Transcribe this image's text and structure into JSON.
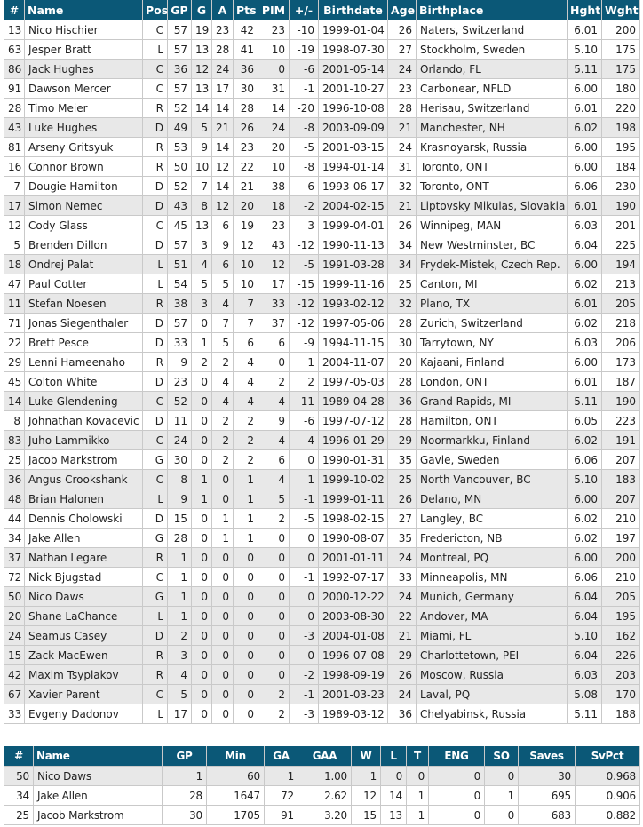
{
  "colors": {
    "header_bg": "#0b5877",
    "header_text": "#ffffff",
    "highlight_row": "#e8e8e8",
    "border": "#c9c9c9"
  },
  "skaters": {
    "columns": [
      "#",
      "Name",
      "Pos",
      "GP",
      "G",
      "A",
      "Pts",
      "PIM",
      "+/-",
      "Birthdate",
      "Age",
      "Birthplace",
      "Hght",
      "Wght"
    ],
    "rows": [
      {
        "cells": [
          "13",
          "Nico Hischier",
          "C",
          "57",
          "19",
          "23",
          "42",
          "23",
          "-10",
          "1999-01-04",
          "26",
          "Naters, Switzerland",
          "6.01",
          "200"
        ],
        "highlighted": false
      },
      {
        "cells": [
          "63",
          "Jesper Bratt",
          "L",
          "57",
          "13",
          "28",
          "41",
          "10",
          "-19",
          "1998-07-30",
          "27",
          "Stockholm, Sweden",
          "5.10",
          "175"
        ],
        "highlighted": false
      },
      {
        "cells": [
          "86",
          "Jack Hughes",
          "C",
          "36",
          "12",
          "24",
          "36",
          "0",
          "-6",
          "2001-05-14",
          "24",
          "Orlando, FL",
          "5.11",
          "175"
        ],
        "highlighted": true
      },
      {
        "cells": [
          "91",
          "Dawson Mercer",
          "C",
          "57",
          "13",
          "17",
          "30",
          "31",
          "-1",
          "2001-10-27",
          "23",
          "Carbonear, NFLD",
          "6.00",
          "180"
        ],
        "highlighted": false
      },
      {
        "cells": [
          "28",
          "Timo Meier",
          "R",
          "52",
          "14",
          "14",
          "28",
          "14",
          "-20",
          "1996-10-08",
          "28",
          "Herisau, Switzerland",
          "6.01",
          "220"
        ],
        "highlighted": false
      },
      {
        "cells": [
          "43",
          "Luke Hughes",
          "D",
          "49",
          "5",
          "21",
          "26",
          "24",
          "-8",
          "2003-09-09",
          "21",
          "Manchester, NH",
          "6.02",
          "198"
        ],
        "highlighted": true
      },
      {
        "cells": [
          "81",
          "Arseny Gritsyuk",
          "R",
          "53",
          "9",
          "14",
          "23",
          "20",
          "-5",
          "2001-03-15",
          "24",
          "Krasnoyarsk, Russia",
          "6.00",
          "195"
        ],
        "highlighted": false
      },
      {
        "cells": [
          "16",
          "Connor Brown",
          "R",
          "50",
          "10",
          "12",
          "22",
          "10",
          "-8",
          "1994-01-14",
          "31",
          "Toronto, ONT",
          "6.00",
          "184"
        ],
        "highlighted": false
      },
      {
        "cells": [
          "7",
          "Dougie Hamilton",
          "D",
          "52",
          "7",
          "14",
          "21",
          "38",
          "-6",
          "1993-06-17",
          "32",
          "Toronto, ONT",
          "6.06",
          "230"
        ],
        "highlighted": false
      },
      {
        "cells": [
          "17",
          "Simon Nemec",
          "D",
          "43",
          "8",
          "12",
          "20",
          "18",
          "-2",
          "2004-02-15",
          "21",
          "Liptovsky Mikulas, Slovakia",
          "6.01",
          "190"
        ],
        "highlighted": true
      },
      {
        "cells": [
          "12",
          "Cody Glass",
          "C",
          "45",
          "13",
          "6",
          "19",
          "23",
          "3",
          "1999-04-01",
          "26",
          "Winnipeg, MAN",
          "6.03",
          "201"
        ],
        "highlighted": false
      },
      {
        "cells": [
          "5",
          "Brenden Dillon",
          "D",
          "57",
          "3",
          "9",
          "12",
          "43",
          "-12",
          "1990-11-13",
          "34",
          "New Westminster, BC",
          "6.04",
          "225"
        ],
        "highlighted": false
      },
      {
        "cells": [
          "18",
          "Ondrej Palat",
          "L",
          "51",
          "4",
          "6",
          "10",
          "12",
          "-5",
          "1991-03-28",
          "34",
          "Frydek-Mistek, Czech Rep.",
          "6.00",
          "194"
        ],
        "highlighted": true
      },
      {
        "cells": [
          "47",
          "Paul Cotter",
          "L",
          "54",
          "5",
          "5",
          "10",
          "17",
          "-15",
          "1999-11-16",
          "25",
          "Canton, MI",
          "6.02",
          "213"
        ],
        "highlighted": false
      },
      {
        "cells": [
          "11",
          "Stefan Noesen",
          "R",
          "38",
          "3",
          "4",
          "7",
          "33",
          "-12",
          "1993-02-12",
          "32",
          "Plano, TX",
          "6.01",
          "205"
        ],
        "highlighted": true
      },
      {
        "cells": [
          "71",
          "Jonas Siegenthaler",
          "D",
          "57",
          "0",
          "7",
          "7",
          "37",
          "-12",
          "1997-05-06",
          "28",
          "Zurich, Switzerland",
          "6.02",
          "218"
        ],
        "highlighted": false
      },
      {
        "cells": [
          "22",
          "Brett Pesce",
          "D",
          "33",
          "1",
          "5",
          "6",
          "6",
          "-9",
          "1994-11-15",
          "30",
          "Tarrytown, NY",
          "6.03",
          "206"
        ],
        "highlighted": false
      },
      {
        "cells": [
          "29",
          "Lenni Hameenaho",
          "R",
          "9",
          "2",
          "2",
          "4",
          "0",
          "1",
          "2004-11-07",
          "20",
          "Kajaani, Finland",
          "6.00",
          "173"
        ],
        "highlighted": false
      },
      {
        "cells": [
          "45",
          "Colton White",
          "D",
          "23",
          "0",
          "4",
          "4",
          "2",
          "2",
          "1997-05-03",
          "28",
          "London, ONT",
          "6.01",
          "187"
        ],
        "highlighted": false
      },
      {
        "cells": [
          "14",
          "Luke Glendening",
          "C",
          "52",
          "0",
          "4",
          "4",
          "4",
          "-11",
          "1989-04-28",
          "36",
          "Grand Rapids, MI",
          "5.11",
          "190"
        ],
        "highlighted": true
      },
      {
        "cells": [
          "8",
          "Johnathan Kovacevic",
          "D",
          "11",
          "0",
          "2",
          "2",
          "9",
          "-6",
          "1997-07-12",
          "28",
          "Hamilton, ONT",
          "6.05",
          "223"
        ],
        "highlighted": false
      },
      {
        "cells": [
          "83",
          "Juho Lammikko",
          "C",
          "24",
          "0",
          "2",
          "2",
          "4",
          "-4",
          "1996-01-29",
          "29",
          "Noormarkku, Finland",
          "6.02",
          "191"
        ],
        "highlighted": true
      },
      {
        "cells": [
          "25",
          "Jacob Markstrom",
          "G",
          "30",
          "0",
          "2",
          "2",
          "6",
          "0",
          "1990-01-31",
          "35",
          "Gavle, Sweden",
          "6.06",
          "207"
        ],
        "highlighted": false
      },
      {
        "cells": [
          "36",
          "Angus Crookshank",
          "C",
          "8",
          "1",
          "0",
          "1",
          "4",
          "1",
          "1999-10-02",
          "25",
          "North Vancouver, BC",
          "5.10",
          "183"
        ],
        "highlighted": true
      },
      {
        "cells": [
          "48",
          "Brian Halonen",
          "L",
          "9",
          "1",
          "0",
          "1",
          "5",
          "-1",
          "1999-01-11",
          "26",
          "Delano, MN",
          "6.00",
          "207"
        ],
        "highlighted": true
      },
      {
        "cells": [
          "44",
          "Dennis Cholowski",
          "D",
          "15",
          "0",
          "1",
          "1",
          "2",
          "-5",
          "1998-02-15",
          "27",
          "Langley, BC",
          "6.02",
          "210"
        ],
        "highlighted": false
      },
      {
        "cells": [
          "34",
          "Jake Allen",
          "G",
          "28",
          "0",
          "1",
          "1",
          "0",
          "0",
          "1990-08-07",
          "35",
          "Fredericton, NB",
          "6.02",
          "197"
        ],
        "highlighted": false
      },
      {
        "cells": [
          "37",
          "Nathan Legare",
          "R",
          "1",
          "0",
          "0",
          "0",
          "0",
          "0",
          "2001-01-11",
          "24",
          "Montreal, PQ",
          "6.00",
          "200"
        ],
        "highlighted": true
      },
      {
        "cells": [
          "72",
          "Nick Bjugstad",
          "C",
          "1",
          "0",
          "0",
          "0",
          "0",
          "-1",
          "1992-07-17",
          "33",
          "Minneapolis, MN",
          "6.06",
          "210"
        ],
        "highlighted": false
      },
      {
        "cells": [
          "50",
          "Nico Daws",
          "G",
          "1",
          "0",
          "0",
          "0",
          "0",
          "0",
          "2000-12-22",
          "24",
          "Munich, Germany",
          "6.04",
          "205"
        ],
        "highlighted": true
      },
      {
        "cells": [
          "20",
          "Shane LaChance",
          "L",
          "1",
          "0",
          "0",
          "0",
          "0",
          "0",
          "2003-08-30",
          "22",
          "Andover, MA",
          "6.04",
          "195"
        ],
        "highlighted": true
      },
      {
        "cells": [
          "24",
          "Seamus Casey",
          "D",
          "2",
          "0",
          "0",
          "0",
          "0",
          "-3",
          "2004-01-08",
          "21",
          "Miami, FL",
          "5.10",
          "162"
        ],
        "highlighted": true
      },
      {
        "cells": [
          "15",
          "Zack MacEwen",
          "R",
          "3",
          "0",
          "0",
          "0",
          "0",
          "0",
          "1996-07-08",
          "29",
          "Charlottetown, PEI",
          "6.04",
          "226"
        ],
        "highlighted": true
      },
      {
        "cells": [
          "42",
          "Maxim Tsyplakov",
          "R",
          "4",
          "0",
          "0",
          "0",
          "0",
          "-2",
          "1998-09-19",
          "26",
          "Moscow, Russia",
          "6.03",
          "203"
        ],
        "highlighted": true
      },
      {
        "cells": [
          "67",
          "Xavier Parent",
          "C",
          "5",
          "0",
          "0",
          "0",
          "2",
          "-1",
          "2001-03-23",
          "24",
          "Laval, PQ",
          "5.08",
          "170"
        ],
        "highlighted": true
      },
      {
        "cells": [
          "33",
          "Evgeny Dadonov",
          "L",
          "17",
          "0",
          "0",
          "0",
          "2",
          "-3",
          "1989-03-12",
          "36",
          "Chelyabinsk, Russia",
          "5.11",
          "188"
        ],
        "highlighted": false
      }
    ]
  },
  "goalies": {
    "columns": [
      "#",
      "Name",
      "GP",
      "Min",
      "GA",
      "GAA",
      "W",
      "L",
      "T",
      "ENG",
      "SO",
      "Saves",
      "SvPct"
    ],
    "rows": [
      {
        "cells": [
          "50",
          "Nico Daws",
          "1",
          "60",
          "1",
          "1.00",
          "1",
          "0",
          "0",
          "0",
          "0",
          "30",
          "0.968"
        ],
        "highlighted": true
      },
      {
        "cells": [
          "34",
          "Jake Allen",
          "28",
          "1647",
          "72",
          "2.62",
          "12",
          "14",
          "1",
          "0",
          "1",
          "695",
          "0.906"
        ],
        "highlighted": false
      },
      {
        "cells": [
          "25",
          "Jacob Markstrom",
          "30",
          "1705",
          "91",
          "3.20",
          "15",
          "13",
          "1",
          "0",
          "0",
          "683",
          "0.882"
        ],
        "highlighted": false
      }
    ]
  }
}
